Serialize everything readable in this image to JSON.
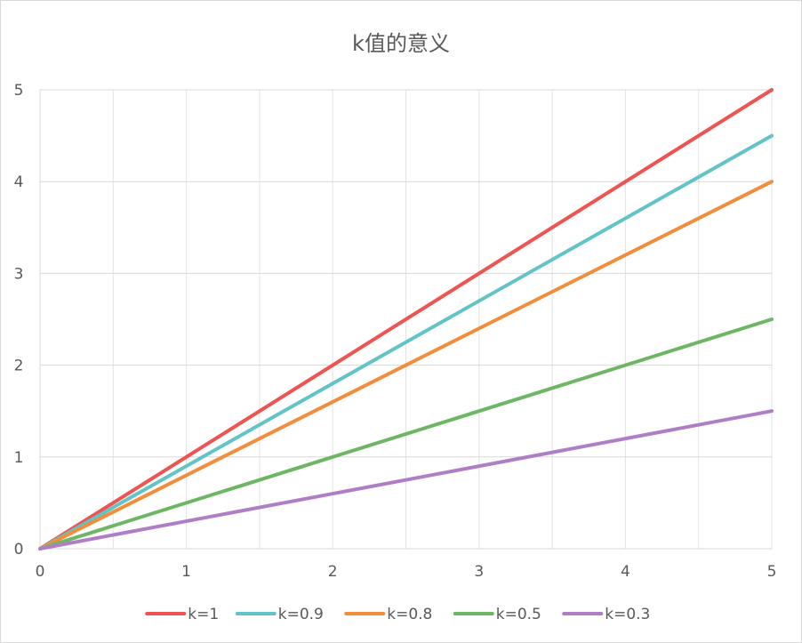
{
  "chart_data": {
    "type": "line",
    "title": "k值的意义",
    "xlabel": "",
    "ylabel": "",
    "x": [
      0,
      5
    ],
    "xlim": [
      0,
      5
    ],
    "ylim": [
      0,
      5
    ],
    "x_ticks": [
      "0",
      "1",
      "2",
      "3",
      "4",
      "5"
    ],
    "y_ticks": [
      "0",
      "1",
      "2",
      "3",
      "4",
      "5"
    ],
    "grid": true,
    "legend_position": "bottom",
    "series": [
      {
        "name": "k=1",
        "values": [
          0,
          5
        ],
        "color": "#ed5452"
      },
      {
        "name": "k=0.9",
        "values": [
          0,
          4.5
        ],
        "color": "#62c4c6"
      },
      {
        "name": "k=0.8",
        "values": [
          0,
          4
        ],
        "color": "#f28e3b"
      },
      {
        "name": "k=0.5",
        "values": [
          0,
          2.5
        ],
        "color": "#6db764"
      },
      {
        "name": "k=0.3",
        "values": [
          0,
          1.5
        ],
        "color": "#b07ec6"
      }
    ]
  }
}
